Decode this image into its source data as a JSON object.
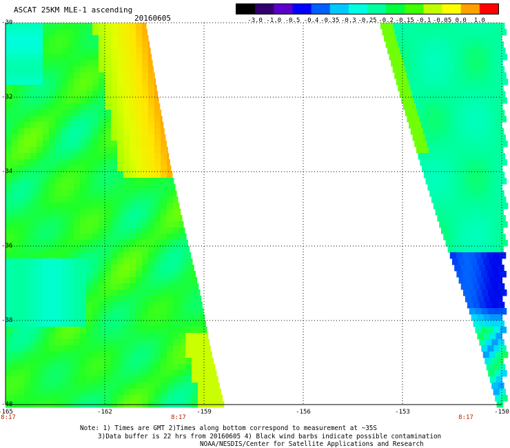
{
  "header": {
    "title": "ASCAT 25KM MLE-1 ascending",
    "date": "20160605"
  },
  "colorbar": {
    "ticks": [
      "-3.0",
      "-1.0",
      "-0.5",
      "-0.4",
      "-0.35",
      "-0.3",
      "-0.25",
      "-0.2",
      "-0.15",
      "-0.1",
      "-0.05",
      "0.0",
      "1.0"
    ],
    "colors": [
      "#000000",
      "#30006e",
      "#5a00c8",
      "#0000ff",
      "#0060ff",
      "#00c8ff",
      "#00ffe0",
      "#00ffa0",
      "#00ff40",
      "#40ff00",
      "#c0ff00",
      "#ffff00",
      "#ffa000",
      "#ff0000"
    ]
  },
  "map": {
    "y_ticks": [
      "-30",
      "-32",
      "-34",
      "-36",
      "-38",
      "-40"
    ],
    "x_ticks": [
      "-165",
      "-162",
      "-159",
      "-156",
      "-153",
      "-150"
    ],
    "time_labels": [
      "8:17",
      "8:17",
      "8:17"
    ]
  },
  "notes": {
    "line1": "Note: 1) Times are GMT 2)Times along bottom correspond to measurement at ~35S",
    "line2": "3)Data buffer is 22 hrs from 20160605 4) Black wind barbs indicate possible contamination",
    "line3": "NOAA/NESDIS/Center for Satellite Applications and Research"
  }
}
